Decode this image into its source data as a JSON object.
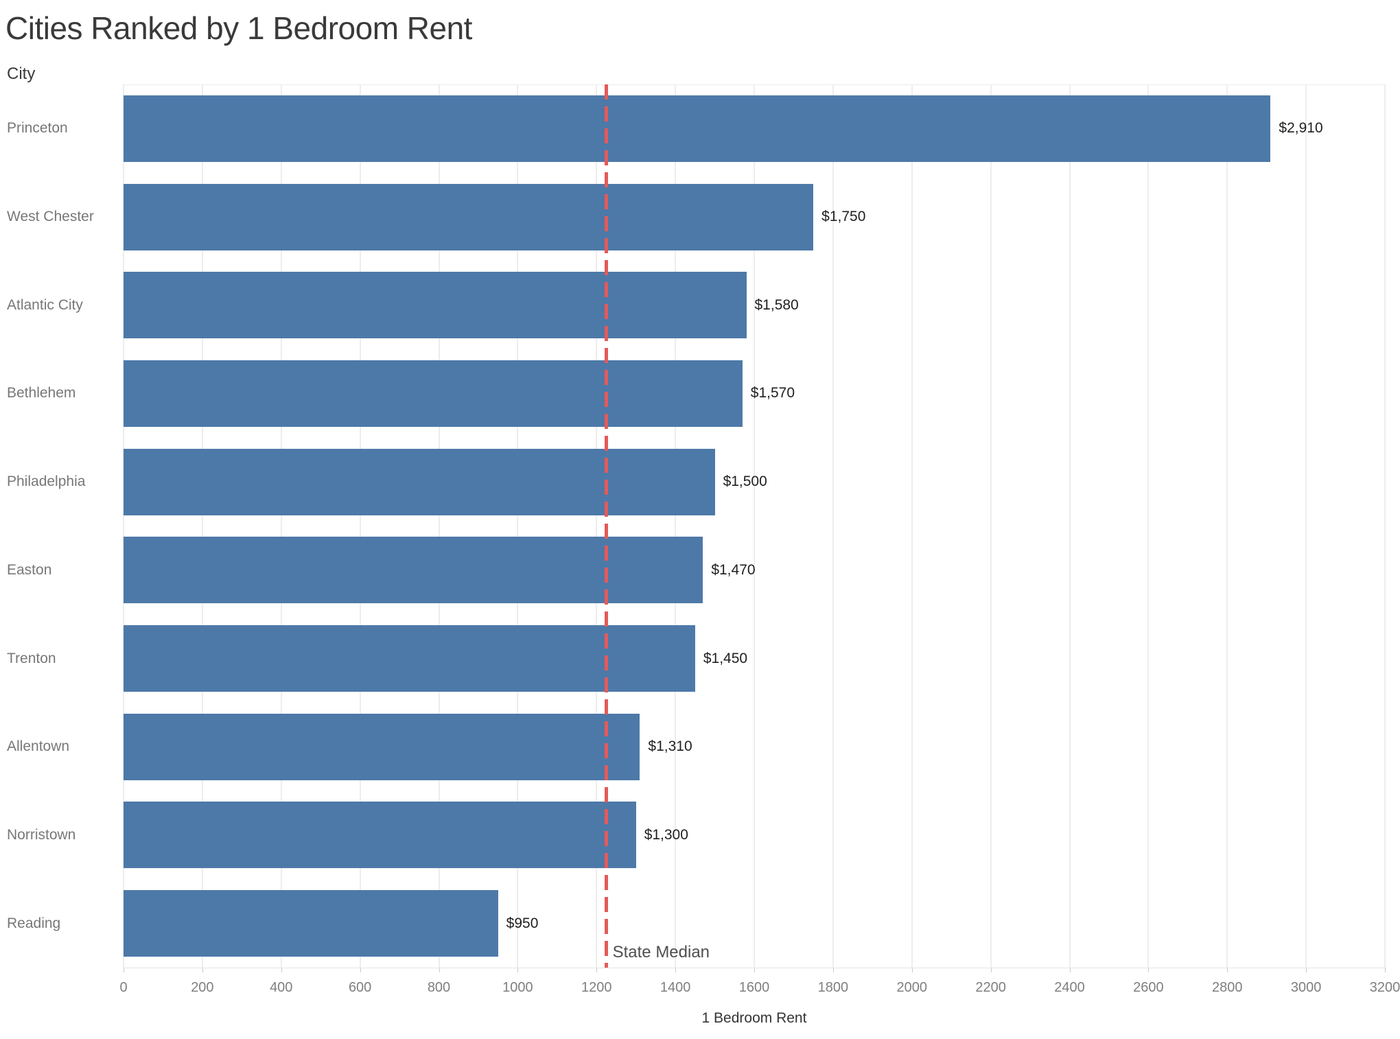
{
  "chart_data": {
    "type": "bar",
    "orientation": "horizontal",
    "title": "Cities Ranked by 1 Bedroom Rent",
    "ylabel": "City",
    "xlabel": "1 Bedroom Rent",
    "categories": [
      "Princeton",
      "West Chester",
      "Atlantic City",
      "Bethlehem",
      "Philadelphia",
      "Easton",
      "Trenton",
      "Allentown",
      "Norristown",
      "Reading"
    ],
    "values": [
      2910,
      1750,
      1580,
      1570,
      1500,
      1470,
      1450,
      1310,
      1300,
      950
    ],
    "value_labels": [
      "$2,910",
      "$1,750",
      "$1,580",
      "$1,570",
      "$1,500",
      "$1,470",
      "$1,450",
      "$1,310",
      "$1,300",
      "$950"
    ],
    "xlim": [
      0,
      3200
    ],
    "xtick_values": [
      0,
      200,
      400,
      600,
      800,
      1000,
      1200,
      1400,
      1600,
      1800,
      2000,
      2200,
      2400,
      2600,
      2800,
      3000,
      3200
    ],
    "xtick_labels": [
      "0",
      "200",
      "400",
      "600",
      "800",
      "1000",
      "1200",
      "1400",
      "1600",
      "1800",
      "2000",
      "2200",
      "2400",
      "2600",
      "2800",
      "3000",
      "3200"
    ],
    "grid": "vertical",
    "legend": "none",
    "bar_color": "#4d79a8",
    "reference_line": {
      "label": "State Median",
      "value": 1225,
      "color": "#e45a5a",
      "style": "dashed"
    }
  }
}
